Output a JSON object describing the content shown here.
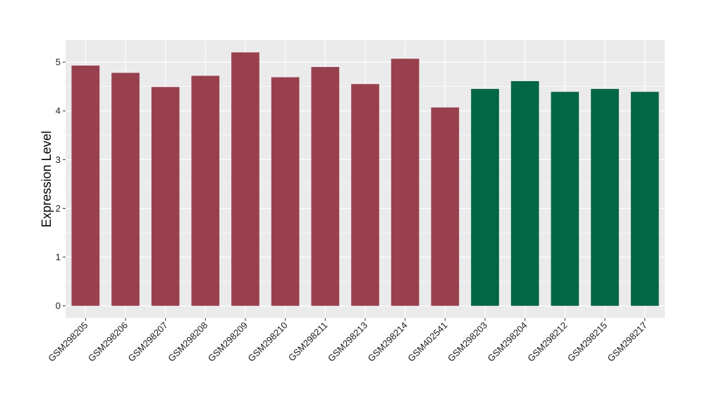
{
  "chart_data": {
    "type": "bar",
    "title": "",
    "xlabel": "",
    "ylabel": "Expression Level",
    "ylim": [
      -0.25,
      5.45
    ],
    "yticks": [
      0,
      1,
      2,
      3,
      4,
      5
    ],
    "grid": true,
    "legend": "none",
    "categories": [
      "GSM298205",
      "GSM298206",
      "GSM298207",
      "GSM298208",
      "GSM298209",
      "GSM298210",
      "GSM298211",
      "GSM298213",
      "GSM298214",
      "GSM402541",
      "GSM298203",
      "GSM298204",
      "GSM298212",
      "GSM298215",
      "GSM298217"
    ],
    "values": [
      4.93,
      4.78,
      4.49,
      4.72,
      5.2,
      4.69,
      4.9,
      4.55,
      5.07,
      4.07,
      4.45,
      4.61,
      4.39,
      4.45,
      4.39
    ],
    "groups": [
      0,
      0,
      0,
      0,
      0,
      0,
      0,
      0,
      0,
      0,
      1,
      1,
      1,
      1,
      1
    ],
    "group_colors": [
      "#99404f",
      "#036644"
    ],
    "panel_color": "#ebebeb",
    "gridline_color": "#ffffff"
  }
}
